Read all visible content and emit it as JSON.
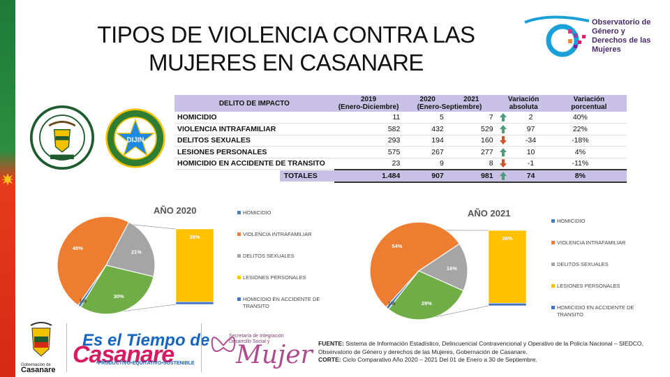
{
  "title": "TIPOS DE VIOLENCIA CONTRA LAS MUJERES EN CASANARE",
  "observatorio": {
    "line1": "Observatorio de",
    "line2": "Género y",
    "line3": "Derechos de las",
    "line4": "Mujeres"
  },
  "seal_dijin": "DIJIN",
  "table": {
    "headers": {
      "delito": "DELITO DE IMPACTO",
      "y2019": "2019",
      "y2019_sub": "(Enero-Diciembre)",
      "y2020": "2020",
      "y2021": "2021",
      "y2020_sub": "(Enero-Septiembre)",
      "var_abs": "Variación",
      "var_abs_sub": "absoluta",
      "var_pct": "Variación",
      "var_pct_sub": "porcentual"
    },
    "rows": [
      {
        "name": "HOMICIDIO",
        "v2019": "11",
        "v2020": "5",
        "v2021": "7",
        "dir": "up",
        "abs": "2",
        "pct": "40%"
      },
      {
        "name": "VIOLENCIA INTRAFAMILIAR",
        "v2019": "582",
        "v2020": "432",
        "v2021": "529",
        "dir": "up",
        "abs": "97",
        "pct": "22%"
      },
      {
        "name": "DELITOS SEXUALES",
        "v2019": "293",
        "v2020": "194",
        "v2021": "160",
        "dir": "down",
        "abs": "-34",
        "pct": "-18%"
      },
      {
        "name": "LESIONES PERSONALES",
        "v2019": "575",
        "v2020": "267",
        "v2021": "277",
        "dir": "up",
        "abs": "10",
        "pct": "4%"
      },
      {
        "name": "HOMICIDIO EN ACCIDENTE DE TRANSITO",
        "v2019": "23",
        "v2020": "9",
        "v2021": "8",
        "dir": "down",
        "abs": "-1",
        "pct": "-11%"
      }
    ],
    "totals": {
      "label": "TOTALES",
      "v2019": "1.484",
      "v2020": "907",
      "v2021": "981",
      "dir": "up",
      "abs": "74",
      "pct": "8%"
    }
  },
  "colors": {
    "homicidio": "#4a7ebb",
    "vif": "#ed7d31",
    "sexuales": "#a5a5a5",
    "lesiones": "#ffc000",
    "transito": "#4472c4",
    "green": "#70ad47",
    "header": "#c9c2e6",
    "up": "#4f9a7a",
    "down": "#d2522a"
  },
  "chart_data": [
    {
      "type": "pie",
      "title": "AÑO 2020",
      "categories": [
        "HOMICIDIO",
        "VIOLENCIA INTRAFAMILIAR",
        "DELITOS SEXUALES",
        "LESIONES PERSONALES",
        "HOMICIDIO EN ACCIDENTE DE TRANSITO"
      ],
      "pie_slices": [
        {
          "label": "48%",
          "value": 48,
          "color": "#ed7d31"
        },
        {
          "label": "21%",
          "value": 21,
          "color": "#a5a5a5"
        },
        {
          "label": "30%",
          "value": 30,
          "color": "#70ad47"
        },
        {
          "label": "1%",
          "value": 1,
          "color": "#4a7ebb"
        }
      ],
      "bar_of_pie": [
        {
          "label": "29%",
          "value": 29,
          "color": "#ffc000"
        },
        {
          "label": "",
          "value": 1,
          "color": "#4472c4"
        }
      ],
      "legend_placement": "right"
    },
    {
      "type": "pie",
      "title": "AÑO 2021",
      "categories": [
        "HOMICIDIO",
        "VIOLENCIA INTRAFAMILIAR",
        "DELITOS SEXUALES",
        "LESIONES PERSONALES",
        "HOMICIDIO EN ACCIDENTE DE TRANSITO"
      ],
      "pie_slices": [
        {
          "label": "54%",
          "value": 54,
          "color": "#ed7d31"
        },
        {
          "label": "16%",
          "value": 16,
          "color": "#a5a5a5"
        },
        {
          "label": "29%",
          "value": 29,
          "color": "#70ad47"
        },
        {
          "label": "1%",
          "value": 1,
          "color": "#4a7ebb"
        }
      ],
      "bar_of_pie": [
        {
          "label": "28%",
          "value": 28,
          "color": "#ffc000"
        },
        {
          "label": "",
          "value": 1,
          "color": "#4472c4"
        }
      ],
      "legend_placement": "right"
    }
  ],
  "legend": [
    "HOMICIDIO",
    "VIOLENCIA INTRAFAMILIAR",
    "DELITOS SEXUALES",
    "LESIONES PERSONALES",
    "HOMICIDIO EN ACCIDENTE DE TRANSITO"
  ],
  "footer": {
    "fuente_label": "FUENTE:",
    "fuente_text": " Sistema de Información Estadístico, Delincuencial Contravencional y Operativo de la Policía Nacional – SIEDCO, Observatorio de Género y derechos de las Mujeres, Gobernación de Casanare.",
    "corte_label": "CORTE:",
    "corte_text": " Ciclo Comparativo Año 2020 – 2021 Del 01 de Enero a 30 de Septiembre."
  },
  "logos": {
    "gob_small": "Gobernación de",
    "gob_big": "Casanare",
    "tiempo1": "Es el Tiempo de",
    "tiempo2": "Casanare",
    "tiempo3": "•PRODUCTIVO•EQUITATIVO•SOSTENIBLE",
    "sec_small1": "Secretaría de Integración",
    "sec_small2": "Desarrollo Social y",
    "sec_big": "Mujer"
  }
}
